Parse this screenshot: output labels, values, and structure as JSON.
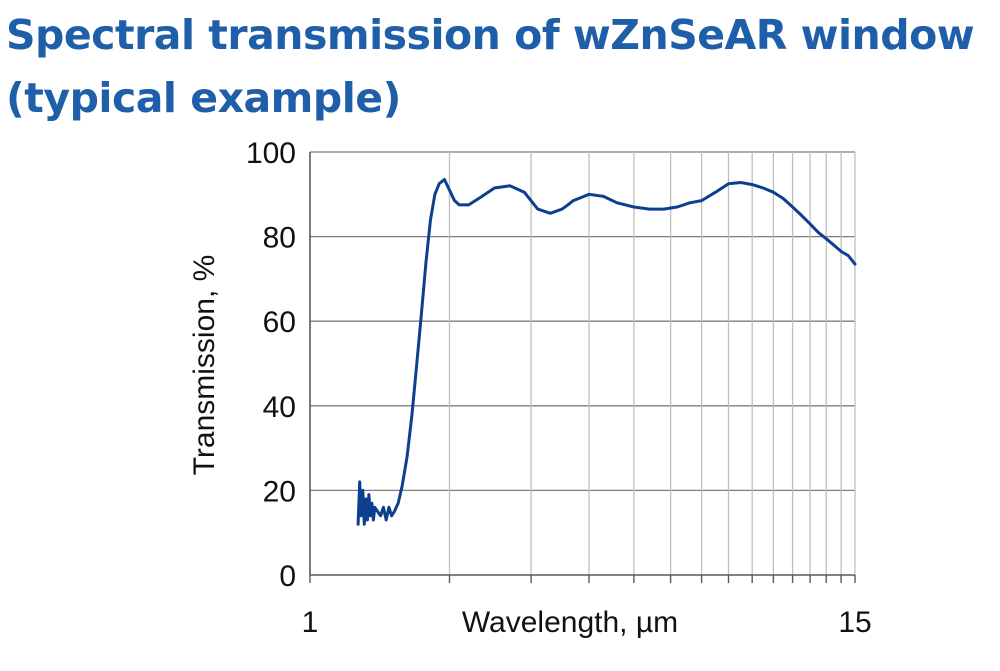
{
  "title": {
    "line1": "Spectral transmission of wZnSeAR window",
    "line2": "(typical example)"
  },
  "colors": {
    "title": "#1f5ea8",
    "series": "#0d3f8f",
    "grid": "#bfbfbf",
    "axis": "#595959"
  },
  "chart_data": {
    "type": "line",
    "title": "Spectral transmission of wZnSeAR window (typical example)",
    "xlabel": "Wavelength, µm",
    "ylabel": "Transmission, %",
    "x_scale": "log",
    "xlim": [
      1,
      15
    ],
    "ylim": [
      0,
      100
    ],
    "x_tick_labels": [
      "1",
      "15"
    ],
    "x_gridlines": [
      2,
      3,
      4,
      5,
      6,
      7,
      8,
      9,
      10,
      11,
      12,
      13,
      14
    ],
    "y_ticks": [
      0,
      20,
      40,
      60,
      80,
      100
    ],
    "grid": true,
    "legend": "none",
    "series": [
      {
        "x": [
          1.27,
          1.28,
          1.29,
          1.3,
          1.31,
          1.32,
          1.33,
          1.34,
          1.35,
          1.36,
          1.37,
          1.38,
          1.4,
          1.42,
          1.44,
          1.46,
          1.48,
          1.5,
          1.52,
          1.55,
          1.58,
          1.62,
          1.66,
          1.7,
          1.74,
          1.78,
          1.82,
          1.86,
          1.9,
          1.95,
          2.0,
          2.05,
          2.1,
          2.2,
          2.35,
          2.5,
          2.7,
          2.9,
          3.1,
          3.3,
          3.5,
          3.6,
          3.7,
          3.8,
          4.0,
          4.3,
          4.6,
          5.0,
          5.4,
          5.8,
          6.2,
          6.6,
          7.0,
          7.5,
          8.0,
          8.5,
          9.0,
          9.5,
          10.0,
          10.5,
          11.0,
          11.5,
          12.0,
          12.5,
          13.0,
          13.5,
          14.0,
          14.5,
          15.0
        ],
        "y": [
          12,
          22,
          14,
          20,
          12,
          18,
          13,
          19,
          14,
          17,
          13,
          16,
          15,
          14,
          16,
          13,
          16,
          14,
          15,
          17,
          21,
          28,
          38,
          50,
          62,
          74,
          84,
          90,
          92.5,
          93.5,
          91,
          88.5,
          87.5,
          87.5,
          89.5,
          91.5,
          92,
          90.5,
          86.5,
          85.5,
          86.5,
          87.5,
          88.5,
          89,
          90,
          89.5,
          88,
          87,
          86.5,
          86.5,
          87,
          88,
          88.5,
          90.5,
          92.5,
          92.8,
          92.3,
          91.5,
          90.5,
          89,
          87,
          85,
          83,
          81,
          79.5,
          78,
          76.5,
          75.5,
          73.5
        ]
      }
    ]
  }
}
